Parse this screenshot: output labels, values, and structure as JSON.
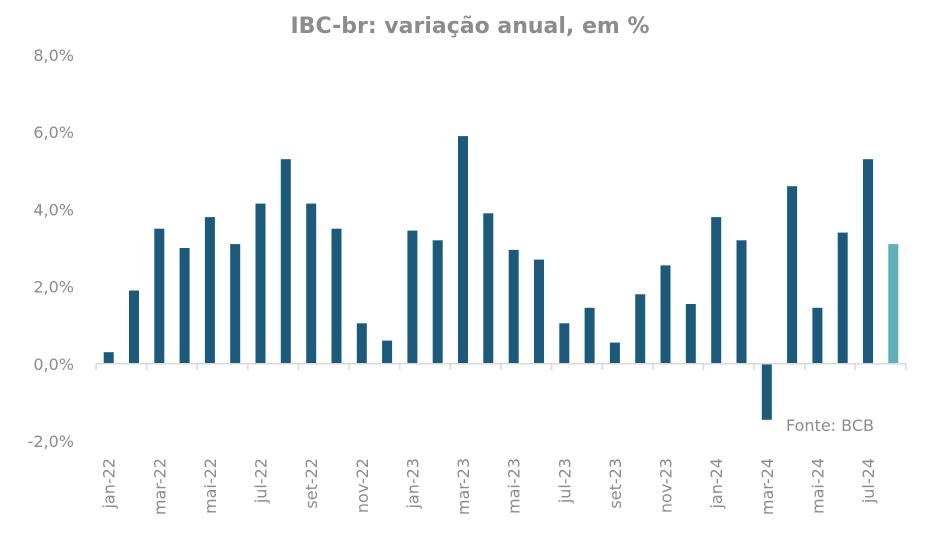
{
  "chart_data": {
    "type": "bar",
    "title": "IBC-br: variação anual, em %",
    "source": "Fonte: BCB",
    "ylim": [
      -2,
      8
    ],
    "yticks": [
      -2,
      0,
      2,
      4,
      6,
      8
    ],
    "ytick_labels": [
      "-2,0%",
      "0,0%",
      "2,0%",
      "4,0%",
      "6,0%",
      "8,0%"
    ],
    "grid": false,
    "legend": "none",
    "categories": [
      "jan-22",
      "fev-22",
      "mar-22",
      "abr-22",
      "mai-22",
      "jun-22",
      "jul-22",
      "ago-22",
      "set-22",
      "out-22",
      "nov-22",
      "dez-22",
      "jan-23",
      "fev-23",
      "mar-23",
      "abr-23",
      "mai-23",
      "jun-23",
      "jul-23",
      "ago-23",
      "set-23",
      "out-23",
      "nov-23",
      "dez-23",
      "jan-24",
      "fev-24",
      "mar-24",
      "abr-24",
      "mai-24",
      "jun-24",
      "jul-24",
      "ago-24"
    ],
    "xtick_labels": [
      "jan-22",
      "",
      "mar-22",
      "",
      "mai-22",
      "",
      "jul-22",
      "",
      "set-22",
      "",
      "nov-22",
      "",
      "jan-23",
      "",
      "mar-23",
      "",
      "mai-23",
      "",
      "jul-23",
      "",
      "set-23",
      "",
      "nov-23",
      "",
      "jan-24",
      "",
      "mar-24",
      "",
      "mai-24",
      "",
      "jul-24",
      ""
    ],
    "values": [
      0.3,
      1.9,
      3.5,
      3.0,
      3.8,
      3.1,
      4.15,
      5.3,
      4.15,
      3.5,
      1.05,
      0.6,
      3.45,
      3.2,
      5.9,
      3.9,
      2.95,
      2.7,
      1.05,
      1.45,
      0.55,
      1.8,
      2.55,
      1.55,
      3.8,
      3.2,
      -1.45,
      4.6,
      1.45,
      3.4,
      5.3,
      3.1
    ],
    "colors": {
      "bar": "#1b5a7a",
      "highlight": "#5fb0b7",
      "axis": "#d9d9d9",
      "text": "#8c8c8c"
    },
    "highlight_index": 31
  }
}
